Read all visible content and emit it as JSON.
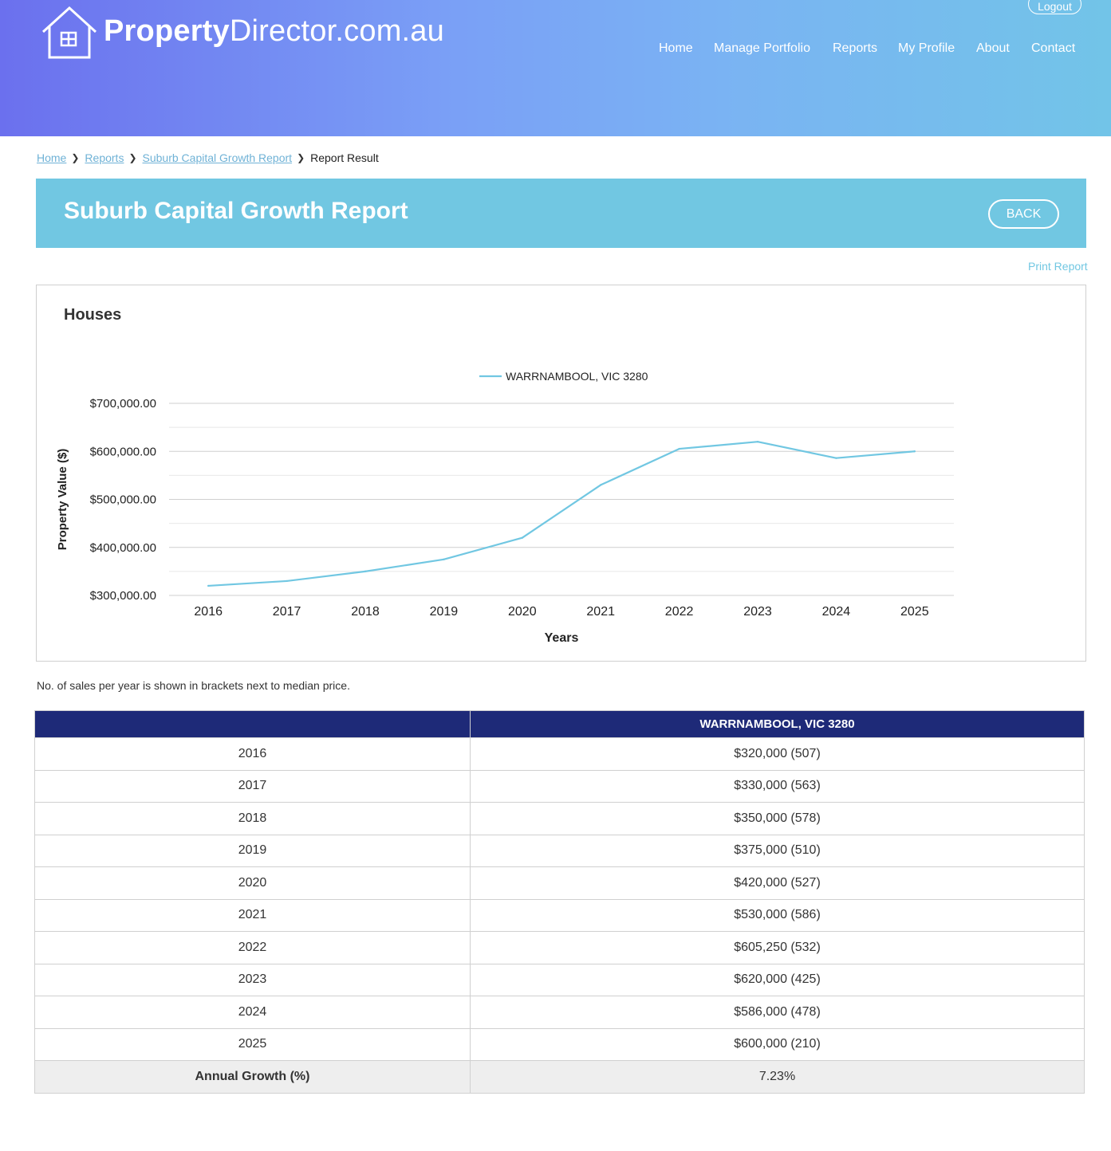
{
  "header": {
    "logo_bold": "Property",
    "logo_light": "Director.com.au",
    "logout_label": "Logout",
    "nav": [
      {
        "label": "Home"
      },
      {
        "label": "Manage Portfolio"
      },
      {
        "label": "Reports"
      },
      {
        "label": "My Profile"
      },
      {
        "label": "About"
      },
      {
        "label": "Contact"
      }
    ]
  },
  "breadcrumb": {
    "items": [
      "Home",
      "Reports",
      "Suburb Capital Growth Report"
    ],
    "current": "Report Result"
  },
  "page": {
    "title": "Suburb Capital Growth Report",
    "back_label": "BACK",
    "print_label": "Print Report",
    "section_title": "Houses",
    "note": "No. of sales per year is shown in brackets next to median price."
  },
  "chart_data": {
    "type": "line",
    "x": [
      2016,
      2017,
      2018,
      2019,
      2020,
      2021,
      2022,
      2023,
      2024,
      2025
    ],
    "series": [
      {
        "name": "WARRNAMBOOL, VIC 3280",
        "color": "#71c7e2",
        "values": [
          320000,
          330000,
          350000,
          375000,
          420000,
          530000,
          605250,
          620000,
          586000,
          600000
        ]
      }
    ],
    "xlabel": "Years",
    "ylabel": "Property Value ($)",
    "ylim": [
      300000,
      700000
    ],
    "yticks": [
      300000,
      400000,
      500000,
      600000,
      700000
    ],
    "ytick_labels": [
      "$300,000.00",
      "$400,000.00",
      "$500,000.00",
      "$600,000.00",
      "$700,000.00"
    ],
    "legend": "top-center",
    "grid": true
  },
  "table": {
    "header_first": "",
    "header_second": "WARRNAMBOOL, VIC 3280",
    "rows": [
      {
        "year": "2016",
        "value": "$320,000 (507)"
      },
      {
        "year": "2017",
        "value": "$330,000 (563)"
      },
      {
        "year": "2018",
        "value": "$350,000 (578)"
      },
      {
        "year": "2019",
        "value": "$375,000 (510)"
      },
      {
        "year": "2020",
        "value": "$420,000 (527)"
      },
      {
        "year": "2021",
        "value": "$530,000 (586)"
      },
      {
        "year": "2022",
        "value": "$605,250 (532)"
      },
      {
        "year": "2023",
        "value": "$620,000 (425)"
      },
      {
        "year": "2024",
        "value": "$586,000 (478)"
      },
      {
        "year": "2025",
        "value": "$600,000 (210)"
      }
    ],
    "total_label": "Annual Growth (%)",
    "total_value": "7.23%"
  }
}
